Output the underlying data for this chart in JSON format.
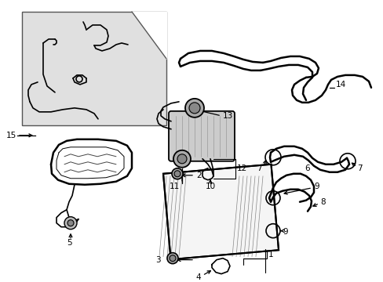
{
  "bg_color": "#ffffff",
  "lc": "#000000",
  "gray_fill": "#d8d8d8",
  "light_gray": "#eeeeee",
  "inset_fill": "#e0e0e0",
  "fs": 7.5,
  "lw_thick": 1.8,
  "lw_med": 1.2,
  "lw_thin": 0.7
}
